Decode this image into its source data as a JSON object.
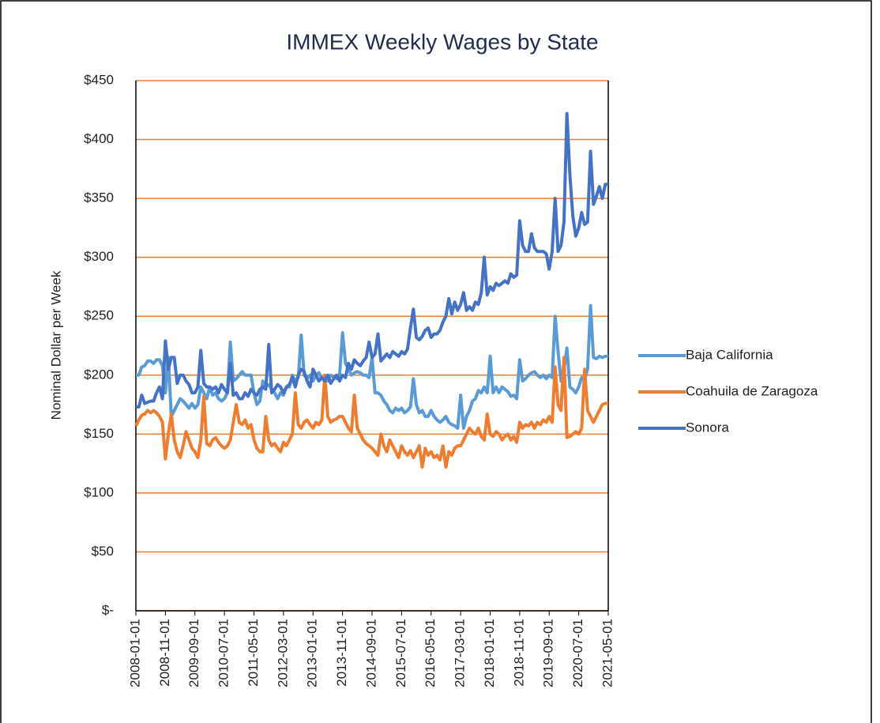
{
  "chart_data": {
    "type": "line",
    "title": "IMMEX Weekly Wages by State",
    "y_label": "Nominal Dollar per Week",
    "categories": [
      "2008-01-01",
      null,
      null,
      null,
      null,
      null,
      null,
      null,
      null,
      null,
      "2008-11-01",
      null,
      null,
      null,
      null,
      null,
      null,
      null,
      null,
      null,
      "2009-09-01",
      null,
      null,
      null,
      null,
      null,
      null,
      null,
      null,
      null,
      "2010-07-01",
      null,
      null,
      null,
      null,
      null,
      null,
      null,
      null,
      null,
      "2011-05-01",
      null,
      null,
      null,
      null,
      null,
      null,
      null,
      null,
      null,
      "2012-03-01",
      null,
      null,
      null,
      null,
      null,
      null,
      null,
      null,
      null,
      "2013-01-01",
      null,
      null,
      null,
      null,
      null,
      null,
      null,
      null,
      null,
      "2013-11-01",
      null,
      null,
      null,
      null,
      null,
      null,
      null,
      null,
      null,
      "2014-09-01",
      null,
      null,
      null,
      null,
      null,
      null,
      null,
      null,
      null,
      "2015-07-01",
      null,
      null,
      null,
      null,
      null,
      null,
      null,
      null,
      null,
      "2016-05-01",
      null,
      null,
      null,
      null,
      null,
      null,
      null,
      null,
      null,
      "2017-03-01",
      null,
      null,
      null,
      null,
      null,
      null,
      null,
      null,
      null,
      "2018-01-01",
      null,
      null,
      null,
      null,
      null,
      null,
      null,
      null,
      null,
      "2018-11-01",
      null,
      null,
      null,
      null,
      null,
      null,
      null,
      null,
      null,
      "2019-09-01",
      null,
      null,
      null,
      null,
      null,
      null,
      null,
      null,
      null,
      "2020-07-01",
      null,
      null,
      null,
      null,
      null,
      null,
      null,
      null,
      null,
      "2021-05-01"
    ],
    "series": [
      {
        "name": "Baja California",
        "color": "#5b9bd5",
        "values": [
          200,
          200,
          207,
          208,
          212,
          212,
          210,
          213,
          213,
          208,
          185,
          215,
          165,
          170,
          175,
          180,
          178,
          175,
          172,
          176,
          172,
          175,
          190,
          185,
          180,
          190,
          183,
          185,
          180,
          178,
          180,
          185,
          228,
          195,
          197,
          200,
          203,
          200,
          200,
          200,
          185,
          175,
          178,
          195,
          190,
          192,
          188,
          185,
          180,
          185,
          183,
          190,
          190,
          200,
          195,
          198,
          234,
          200,
          197,
          200,
          195,
          200,
          202,
          197,
          198,
          195,
          200,
          198,
          197,
          200,
          236,
          210,
          205,
          200,
          202,
          203,
          202,
          200,
          200,
          198,
          215,
          185,
          185,
          183,
          178,
          175,
          170,
          168,
          172,
          170,
          172,
          168,
          170,
          173,
          197,
          175,
          168,
          170,
          165,
          165,
          170,
          165,
          162,
          160,
          162,
          165,
          160,
          158,
          157,
          155,
          183,
          155,
          165,
          170,
          178,
          180,
          187,
          185,
          190,
          185,
          216,
          185,
          190,
          185,
          190,
          188,
          186,
          182,
          183,
          180,
          213,
          195,
          197,
          200,
          202,
          203,
          200,
          198,
          200,
          197,
          200,
          198,
          250,
          220,
          195,
          205,
          223,
          190,
          188,
          185,
          190,
          198,
          196,
          205,
          259,
          215,
          214,
          216,
          215,
          216,
          216
        ]
      },
      {
        "name": "Coahuila de Zaragoza",
        "color": "#ed7d31",
        "values": [
          157,
          162,
          166,
          167,
          170,
          168,
          170,
          168,
          165,
          160,
          129,
          150,
          167,
          145,
          135,
          130,
          140,
          152,
          145,
          138,
          135,
          130,
          145,
          182,
          142,
          140,
          145,
          147,
          143,
          140,
          138,
          140,
          145,
          160,
          175,
          160,
          158,
          162,
          155,
          158,
          145,
          138,
          135,
          135,
          165,
          145,
          140,
          142,
          138,
          135,
          143,
          140,
          145,
          150,
          185,
          158,
          155,
          160,
          162,
          158,
          155,
          160,
          158,
          162,
          200,
          165,
          160,
          162,
          163,
          165,
          165,
          160,
          155,
          152,
          183,
          155,
          150,
          145,
          142,
          140,
          138,
          135,
          132,
          150,
          140,
          135,
          145,
          140,
          135,
          130,
          140,
          135,
          132,
          136,
          130,
          135,
          140,
          122,
          138,
          132,
          135,
          130,
          132,
          128,
          140,
          122,
          135,
          132,
          138,
          140,
          140,
          145,
          150,
          155,
          152,
          150,
          155,
          148,
          145,
          167,
          150,
          148,
          152,
          150,
          145,
          148,
          150,
          145,
          148,
          143,
          160,
          155,
          158,
          157,
          160,
          155,
          160,
          158,
          162,
          160,
          165,
          160,
          207,
          175,
          170,
          215,
          147,
          148,
          150,
          152,
          150,
          155,
          205,
          170,
          165,
          160,
          165,
          170,
          175,
          176,
          176
        ]
      },
      {
        "name": "Sonora",
        "color": "#4472c4",
        "values": [
          173,
          173,
          183,
          176,
          177,
          178,
          178,
          185,
          190,
          180,
          229,
          205,
          215,
          215,
          193,
          200,
          200,
          195,
          192,
          185,
          185,
          190,
          221,
          193,
          190,
          190,
          188,
          190,
          185,
          192,
          188,
          185,
          210,
          183,
          185,
          180,
          180,
          185,
          182,
          188,
          185,
          183,
          188,
          190,
          188,
          226,
          185,
          188,
          192,
          190,
          185,
          190,
          192,
          198,
          190,
          200,
          205,
          203,
          195,
          190,
          205,
          200,
          195,
          198,
          195,
          200,
          193,
          197,
          200,
          195,
          200,
          198,
          210,
          205,
          213,
          210,
          208,
          212,
          215,
          228,
          215,
          218,
          235,
          212,
          215,
          218,
          215,
          220,
          218,
          216,
          220,
          218,
          222,
          240,
          256,
          232,
          230,
          233,
          238,
          240,
          232,
          235,
          235,
          238,
          245,
          250,
          265,
          252,
          262,
          255,
          260,
          270,
          255,
          258,
          255,
          262,
          260,
          270,
          300,
          268,
          275,
          272,
          278,
          276,
          278,
          280,
          278,
          286,
          283,
          285,
          331,
          310,
          305,
          305,
          320,
          308,
          305,
          305,
          305,
          303,
          290,
          305,
          350,
          305,
          310,
          330,
          422,
          370,
          335,
          318,
          325,
          338,
          328,
          330,
          390,
          345,
          352,
          360,
          350,
          362,
          362
        ]
      }
    ],
    "ylim": [
      0,
      450
    ],
    "yticks": [
      {
        "value": 0,
        "label": "$-"
      },
      {
        "value": 50,
        "label": "$50"
      },
      {
        "value": 100,
        "label": "$100"
      },
      {
        "value": 150,
        "label": "$150"
      },
      {
        "value": 200,
        "label": "$200"
      },
      {
        "value": 250,
        "label": "$250"
      },
      {
        "value": 300,
        "label": "$300"
      },
      {
        "value": 350,
        "label": "$350"
      },
      {
        "value": 400,
        "label": "$400"
      },
      {
        "value": 450,
        "label": "$450"
      }
    ],
    "grid": true,
    "grid_color": "#ed7d31",
    "legend": "right"
  }
}
